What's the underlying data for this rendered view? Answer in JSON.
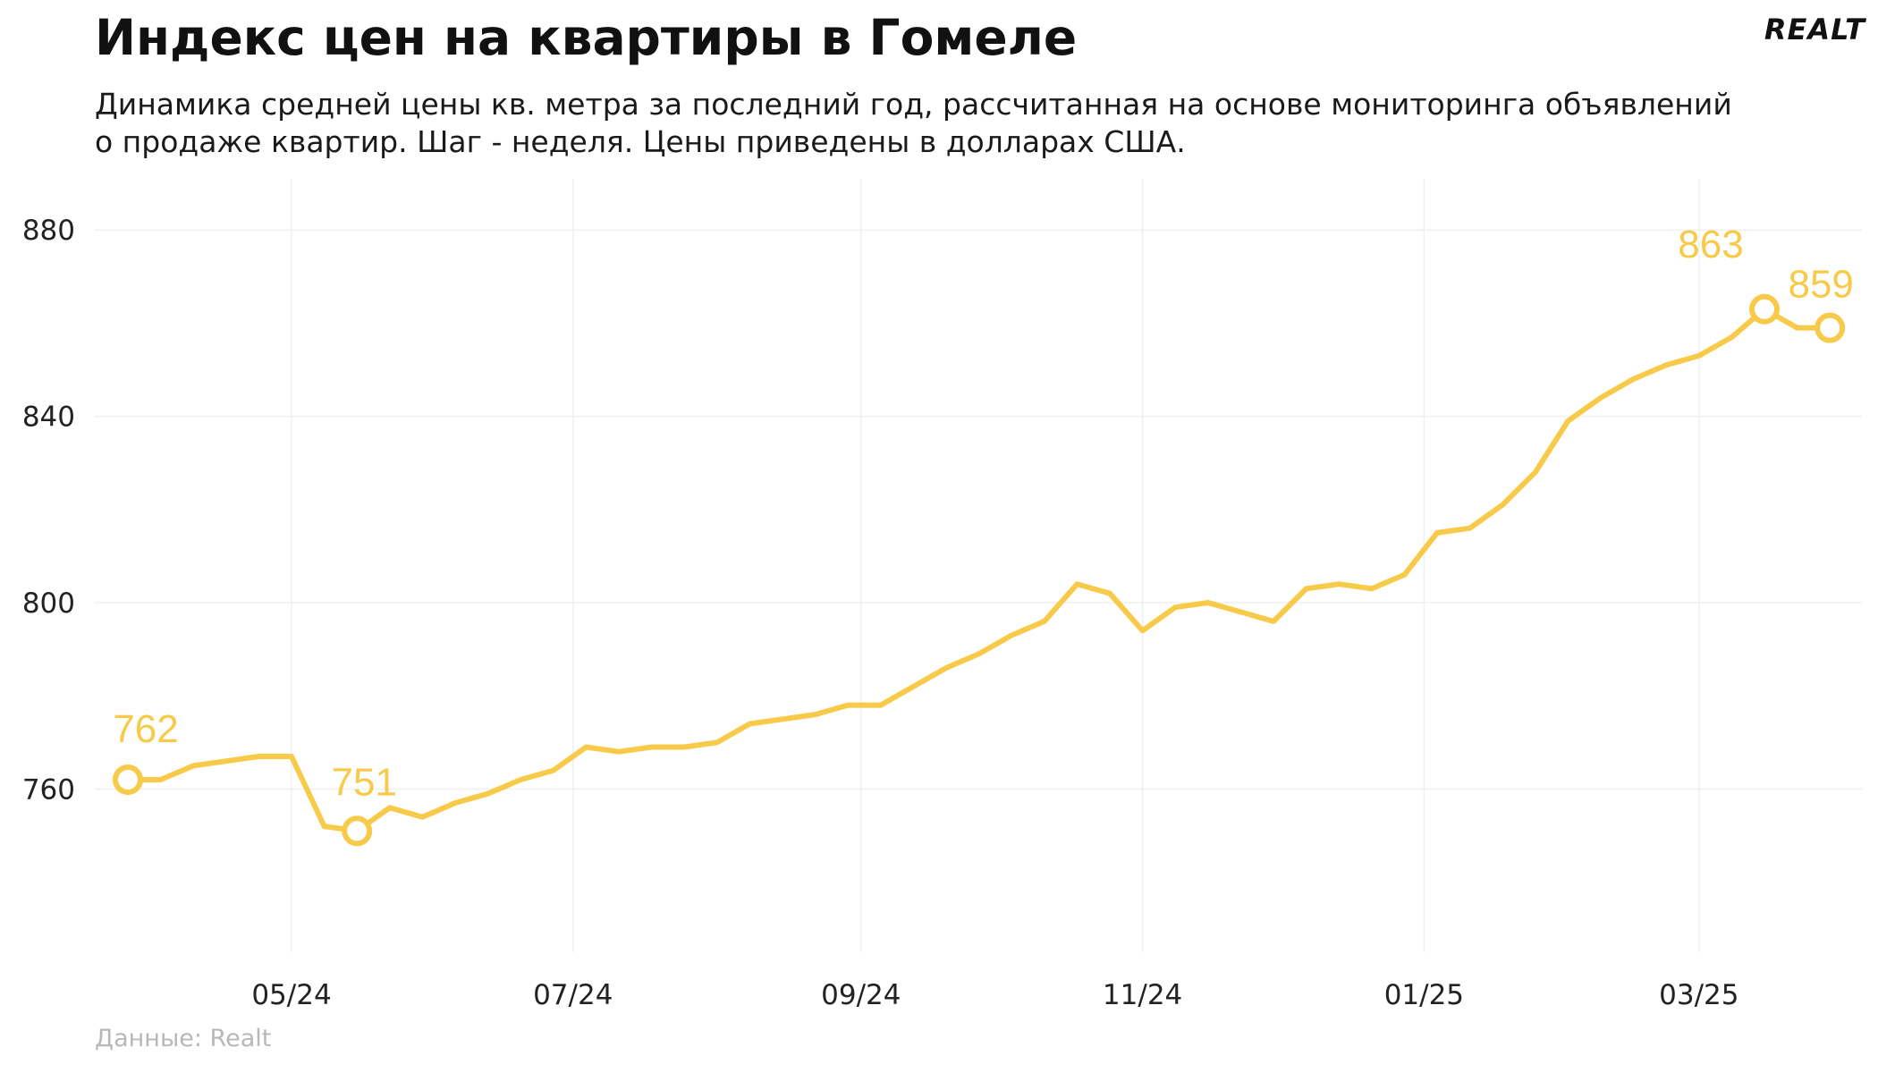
{
  "header": {
    "title": "Индекс цен на квартиры в Гомеле",
    "subtitle": "Динамика средней цены кв. метра за последний год, рассчитанная на основе мониторинга объявлений о продаже квартир. Шаг - неделя. Цены приведены в долларах США.",
    "logo": "REALT"
  },
  "footer": {
    "source": "Данные: Realt"
  },
  "style": {
    "line_color": "#f8ca4a",
    "grid_color": "#f0f0f0"
  },
  "chart_data": {
    "type": "line",
    "title": "Индекс цен на квартиры в Гомеле",
    "xlabel": "",
    "ylabel": "",
    "ylim": [
      730,
      890
    ],
    "grid": true,
    "y_ticks": [
      760,
      800,
      840,
      880
    ],
    "x_ticks": [
      "05/24",
      "07/24",
      "09/24",
      "11/24",
      "01/25",
      "03/25"
    ],
    "x_tick_positions_week": [
      5,
      13.6,
      22.4,
      31,
      39.6,
      48
    ],
    "series": [
      {
        "values": [
          762,
          762,
          765,
          766,
          767,
          767,
          752,
          751,
          756,
          754,
          757,
          759,
          762,
          764,
          769,
          768,
          769,
          769,
          770,
          774,
          775,
          776,
          778,
          778,
          782,
          786,
          789,
          793,
          796,
          804,
          802,
          794,
          799,
          800,
          798,
          796,
          803,
          804,
          803,
          806,
          815,
          816,
          821,
          828,
          839,
          844,
          848,
          851,
          853,
          857,
          863,
          859,
          859
        ]
      }
    ],
    "annotations": [
      {
        "index": 0,
        "label": "762"
      },
      {
        "index": 7,
        "label": "751"
      },
      {
        "index": 50,
        "label": "863"
      },
      {
        "index": 52,
        "label": "859"
      }
    ]
  }
}
